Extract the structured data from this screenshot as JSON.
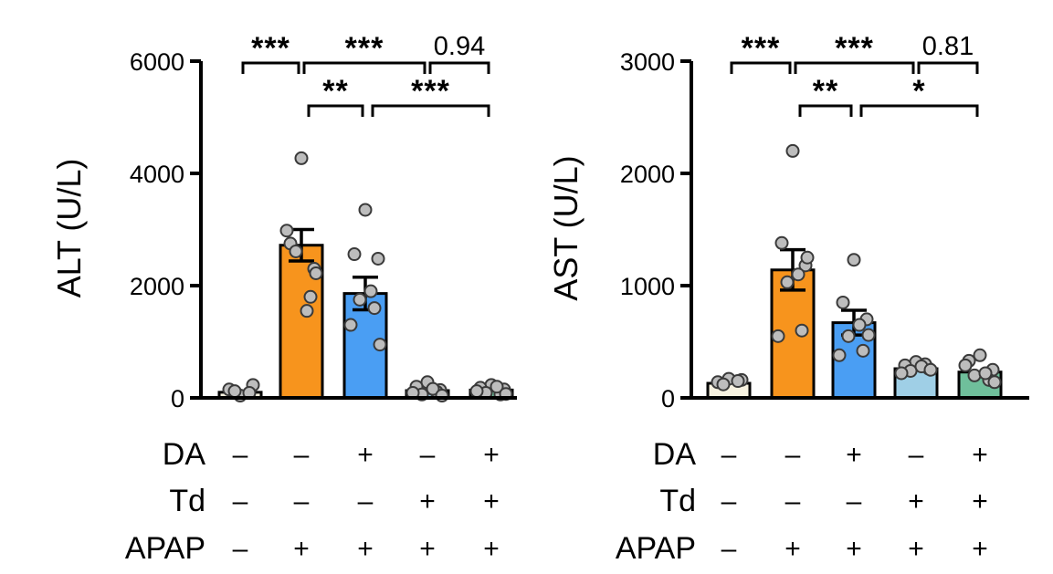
{
  "chart_data": [
    {
      "type": "bar",
      "ylabel": "ALT (U/L)",
      "ylim": [
        0,
        6000
      ],
      "yticks": [
        0,
        2000,
        4000,
        6000
      ],
      "grid": false,
      "bars": [
        {
          "mean": 100,
          "sem": 0,
          "color": "#f7f2e0",
          "points": [
            40,
            150,
            230,
            120,
            90
          ]
        },
        {
          "mean": 2720,
          "sem": 280,
          "color": "#f7941d",
          "points": [
            4270,
            2750,
            2300,
            2610,
            1800,
            2980,
            1550,
            2220
          ]
        },
        {
          "mean": 1860,
          "sem": 290,
          "color": "#4a9ef3",
          "points": [
            3350,
            2560,
            2480,
            1750,
            1600,
            1300,
            1900,
            950
          ]
        },
        {
          "mean": 130,
          "sem": 0,
          "color": "#9fcfe6",
          "points": [
            280,
            200,
            140,
            60,
            110,
            90,
            160,
            40
          ]
        },
        {
          "mean": 140,
          "sem": 0,
          "color": "#6fbf9b",
          "points": [
            230,
            180,
            150,
            90,
            60,
            120,
            200,
            70
          ]
        }
      ],
      "comparisons": [
        {
          "from": 0,
          "to": 1,
          "label": "***",
          "level": 0
        },
        {
          "from": 1,
          "to": 3,
          "label": "***",
          "level": 0
        },
        {
          "from": 3,
          "to": 4,
          "label": "0.94",
          "level": 0
        },
        {
          "from": 1,
          "to": 2,
          "label": "**",
          "level": 1
        },
        {
          "from": 2,
          "to": 4,
          "label": "***",
          "level": 1
        }
      ]
    },
    {
      "type": "bar",
      "ylabel": "AST (U/L)",
      "ylim": [
        0,
        3000
      ],
      "yticks": [
        0,
        1000,
        2000,
        3000
      ],
      "grid": false,
      "bars": [
        {
          "mean": 130,
          "sem": 0,
          "color": "#f7f2e0",
          "points": [
            170,
            140,
            160,
            120,
            150
          ]
        },
        {
          "mean": 1140,
          "sem": 180,
          "color": "#f7941d",
          "points": [
            2200,
            1380,
            1180,
            1030,
            600,
            550,
            1100,
            1250
          ]
        },
        {
          "mean": 670,
          "sem": 110,
          "color": "#4a9ef3",
          "points": [
            1230,
            850,
            700,
            550,
            420,
            380,
            650,
            560
          ]
        },
        {
          "mean": 260,
          "sem": 0,
          "color": "#9fcfe6",
          "points": [
            320,
            290,
            260,
            240,
            300,
            220,
            280,
            250
          ]
        },
        {
          "mean": 230,
          "sem": 0,
          "color": "#6fbf9b",
          "points": [
            380,
            330,
            250,
            200,
            160,
            290,
            220,
            140
          ]
        }
      ],
      "comparisons": [
        {
          "from": 0,
          "to": 1,
          "label": "***",
          "level": 0
        },
        {
          "from": 1,
          "to": 3,
          "label": "***",
          "level": 0
        },
        {
          "from": 3,
          "to": 4,
          "label": "0.81",
          "level": 0
        },
        {
          "from": 1,
          "to": 2,
          "label": "**",
          "level": 1
        },
        {
          "from": 2,
          "to": 4,
          "label": "*",
          "level": 1
        }
      ]
    }
  ],
  "conditions": [
    {
      "label": "DA",
      "signs": [
        "–",
        "–",
        "+",
        "–",
        "+"
      ]
    },
    {
      "label": "Td",
      "signs": [
        "–",
        "–",
        "–",
        "+",
        "+"
      ]
    },
    {
      "label": "APAP",
      "signs": [
        "–",
        "+",
        "+",
        "+",
        "+"
      ]
    }
  ]
}
